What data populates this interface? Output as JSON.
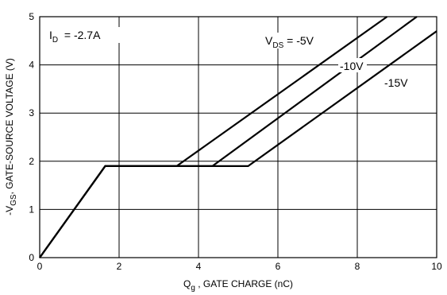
{
  "chart_data": {
    "type": "line",
    "xlabel": {
      "main": "Q",
      "sub": "g",
      "rest": " , GATE CHARGE (nC)"
    },
    "ylabel": {
      "pre": "-V",
      "sub": "GS",
      "rest": ", GATE-SOURCE VOLTAGE (V)"
    },
    "xlim": [
      0,
      10
    ],
    "ylim": [
      0,
      5
    ],
    "xticks": [
      0,
      2,
      4,
      6,
      8,
      10
    ],
    "yticks": [
      0,
      1,
      2,
      3,
      4,
      5
    ],
    "grid": true,
    "series": [
      {
        "name": "-5V",
        "x": [
          0,
          1.65,
          3.45,
          8.75
        ],
        "y": [
          0,
          1.9,
          1.9,
          5.0
        ]
      },
      {
        "name": "-10V",
        "x": [
          0,
          1.65,
          4.35,
          9.5
        ],
        "y": [
          0,
          1.9,
          1.9,
          5.0
        ]
      },
      {
        "name": "-15V",
        "x": [
          0,
          1.65,
          5.25,
          10.0
        ],
        "y": [
          0,
          1.9,
          1.9,
          4.7
        ]
      }
    ],
    "annotations": {
      "id": {
        "pre": "I",
        "sub": "D",
        "rest": "  = -2.7A"
      },
      "vds": {
        "pre": "V",
        "sub": "DS",
        "rest": " = -5V"
      },
      "v10": "-10V",
      "v15": "-15V"
    }
  }
}
